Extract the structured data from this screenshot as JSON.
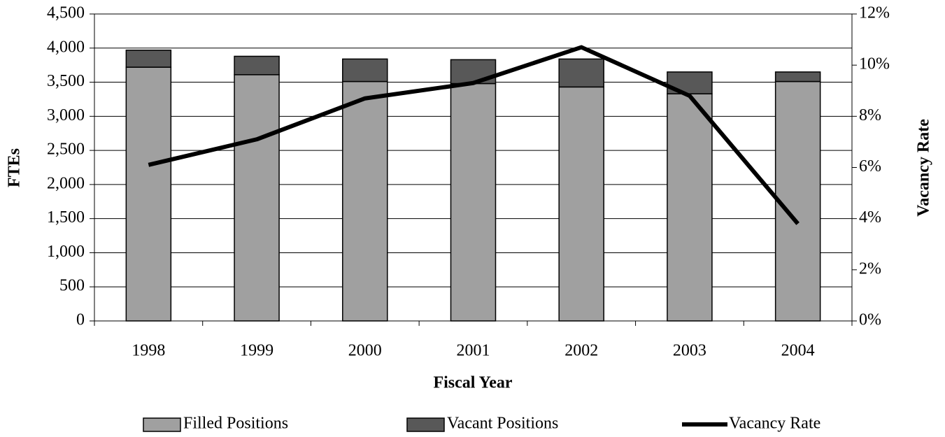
{
  "chart_data": {
    "type": "bar",
    "stacked": true,
    "xlabel": "Fiscal Year",
    "ylabel": "FTEs",
    "y2label": "Vacancy Rate",
    "categories": [
      "1998",
      "1999",
      "2000",
      "2001",
      "2002",
      "2003",
      "2004"
    ],
    "series": [
      {
        "name": "Filled Positions",
        "type": "bar",
        "color": "#a0a0a0",
        "values": [
          3720,
          3610,
          3510,
          3480,
          3430,
          3330,
          3510
        ]
      },
      {
        "name": "Vacant Positions",
        "type": "bar",
        "color": "#585858",
        "values": [
          250,
          270,
          330,
          350,
          410,
          320,
          140
        ]
      },
      {
        "name": "Vacancy Rate",
        "type": "line",
        "axis": "y2",
        "color": "#000000",
        "values": [
          6.1,
          7.1,
          8.7,
          9.3,
          10.7,
          8.8,
          3.8
        ]
      }
    ],
    "ylim": [
      0,
      4500
    ],
    "yticks": [
      0,
      500,
      {
        "value": 1000,
        "label": "1,000"
      },
      {
        "value": 1500,
        "label": "1,500"
      },
      {
        "value": 2000,
        "label": "2,000"
      },
      {
        "value": 2500,
        "label": "2,500"
      },
      {
        "value": 3000,
        "label": "3,000"
      },
      {
        "value": 3500,
        "label": "3,500"
      },
      {
        "value": 4000,
        "label": "4,000"
      },
      {
        "value": 4500,
        "label": "4,500"
      }
    ],
    "y2lim": [
      0,
      12
    ],
    "y2ticks": [
      {
        "value": 0,
        "label": "0%"
      },
      {
        "value": 2,
        "label": "2%"
      },
      {
        "value": 4,
        "label": "4%"
      },
      {
        "value": 6,
        "label": "6%"
      },
      {
        "value": 8,
        "label": "8%"
      },
      {
        "value": 10,
        "label": "10%"
      },
      {
        "value": 12,
        "label": "12%"
      }
    ],
    "grid": true,
    "legend": "bottom"
  }
}
